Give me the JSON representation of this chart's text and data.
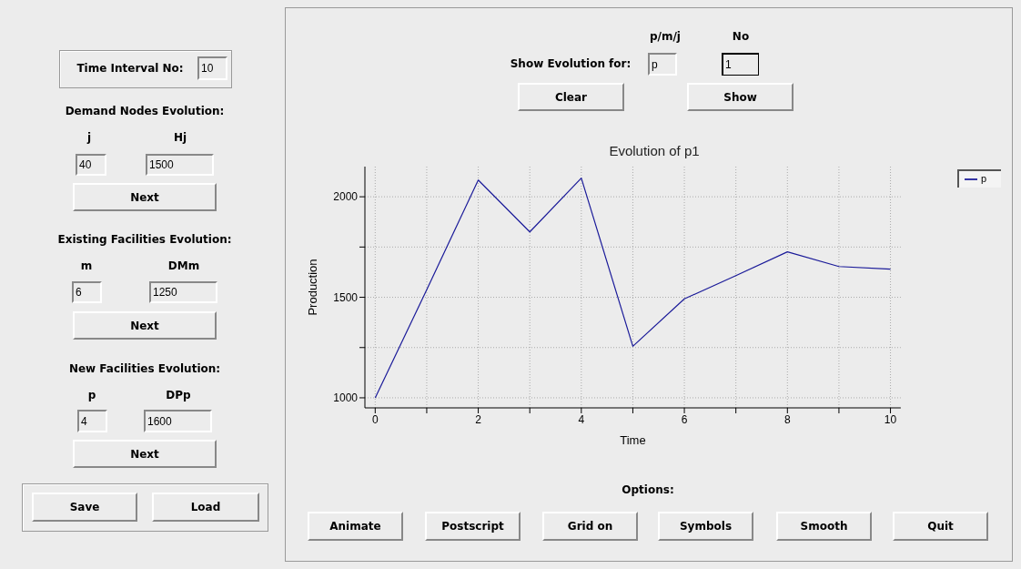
{
  "chart_data": [
    {
      "type": "other",
      "annotations": [
        "Time Interval No:",
        "10",
        "Demand Nodes Evolution:",
        "j",
        "Hj",
        "40",
        "1500",
        "Next",
        "Existing Facilities Evolution:",
        "m",
        "DMm",
        "6",
        "1250",
        "Next",
        "New Facilities Evolution:",
        "p",
        "DPp",
        "4",
        "1600",
        "Next",
        "Save",
        "Load"
      ]
    },
    {
      "type": "line",
      "title": "Evolution of p1",
      "xlabel": "Time",
      "ylabel": "Production",
      "x": [
        0,
        1,
        2,
        3,
        4,
        5,
        6,
        7,
        8,
        9,
        10
      ],
      "series": [
        {
          "name": "p",
          "color": "#1a1a99",
          "values": [
            1000,
            1538,
            2083,
            1825,
            2093,
            1256,
            1492,
            1608,
            1726,
            1653,
            1640
          ]
        }
      ],
      "xlim": [
        -0.2,
        10.2
      ],
      "xticks": [
        0,
        {
          "value": 1,
          "label": null
        },
        2,
        {
          "value": 3,
          "label": null
        },
        4,
        {
          "value": 5,
          "label": null
        },
        6,
        {
          "value": 7,
          "label": null
        },
        8,
        {
          "value": 9,
          "label": null
        },
        10
      ],
      "ylim": [
        950,
        2150
      ],
      "yticks": [
        1000,
        {
          "value": 1250,
          "label": null
        },
        1500,
        {
          "value": 1750,
          "label": null
        },
        2000
      ],
      "grid": true,
      "legend": "top right",
      "annotations": [
        "p/m/j",
        "No",
        "Show Evolution for:",
        "p",
        "1",
        "Clear",
        "Show",
        "Options:",
        "Animate",
        "Postscript",
        "Grid on",
        "Symbols",
        "Smooth",
        "Quit"
      ]
    }
  ]
}
